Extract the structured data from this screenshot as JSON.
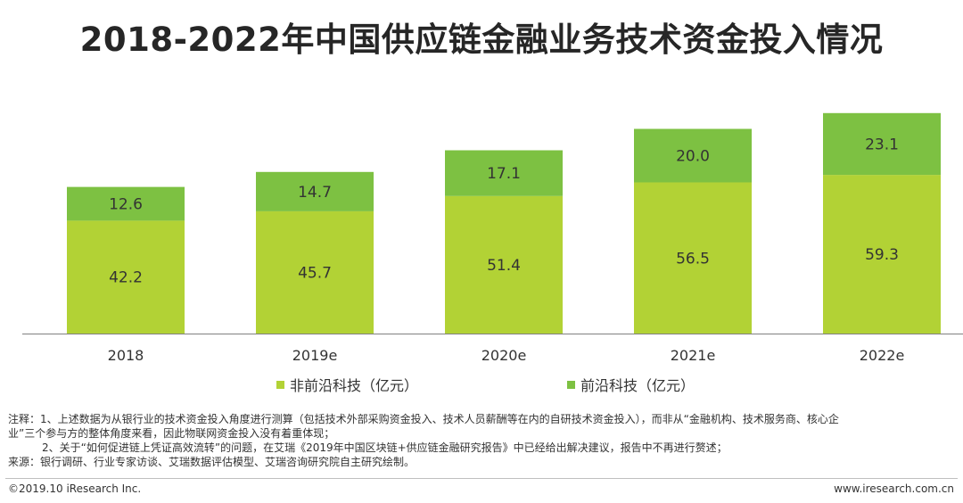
{
  "title": "2018-2022年中国供应链金融业务技术资金投入情况",
  "colors": {
    "non_frontier": "#b2d235",
    "frontier": "#7dc142",
    "axis": "#808080"
  },
  "chart_data": {
    "type": "bar",
    "stacked": true,
    "title": "2018-2022年中国供应链金融业务技术资金投入情况",
    "categories": [
      "2018",
      "2019e",
      "2020e",
      "2021e",
      "2022e"
    ],
    "series": [
      {
        "name": "非前沿科技（亿元）",
        "values": [
          42.2,
          45.7,
          51.4,
          56.5,
          59.3
        ]
      },
      {
        "name": "前沿科技（亿元）",
        "values": [
          12.6,
          14.7,
          17.1,
          20.0,
          23.1
        ]
      }
    ],
    "value_labels": [
      [
        "42.2",
        "45.7",
        "51.4",
        "56.5",
        "59.3"
      ],
      [
        "12.6",
        "14.7",
        "17.1",
        "20.0",
        "23.1"
      ]
    ],
    "legend_position": "bottom",
    "grid": false
  },
  "legend": {
    "non_frontier": "非前沿科技（亿元）",
    "frontier": "前沿科技（亿元）"
  },
  "notes": {
    "line1": "注释：1、上述数据为从银行业的技术资金投入角度进行测算（包括技术外部采购资金投入、技术人员薪酬等在内的自研技术资金投入），而非从“金融机构、技术服务商、核心企",
    "line2": "业”三个参与方的整体角度来看，因此物联网资金投入没有着重体现；",
    "line3": "2、关于“如何促进链上凭证高效流转”的问题，在艾瑞《2019年中国区块链+供应链金融研究报告》中已经给出解决建议，报告中不再进行赘述；",
    "line4": "来源：银行调研、行业专家访谈、艾瑞数据评估模型、艾瑞咨询研究院自主研究绘制。"
  },
  "footer": {
    "copyright": "©2019.10 iResearch Inc.",
    "website": "www.iresearch.com.cn"
  }
}
